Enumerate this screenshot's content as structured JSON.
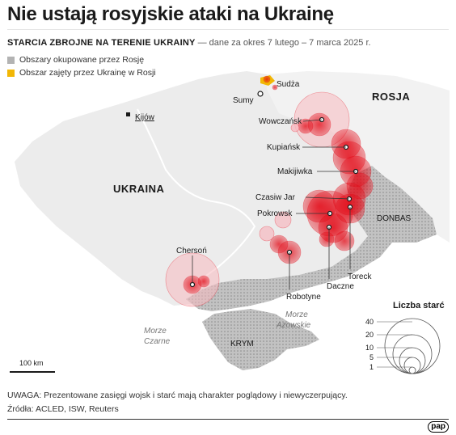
{
  "title": "Nie ustają rosyjskie ataki na Ukrainę",
  "subtitle": {
    "bold": "STARCIA ZBROJNE NA TERENIE UKRAINY",
    "rest": "— dane za okres 7 lutego – 7 marca 2025 r."
  },
  "legend": {
    "occupied": {
      "label": "Obszary okupowane przez Rosję",
      "color": "#b3b3b3"
    },
    "taken": {
      "label": "Obszar zajęty przez Ukrainę w Rosji",
      "color": "#f2b705"
    }
  },
  "colors": {
    "battle": "#e30613",
    "land": "#ececec",
    "sea": "#ffffff"
  },
  "map_labels": {
    "country_ukraine": "UKRAINA",
    "country_russia": "ROSJA",
    "region_donbas": "DONBAS",
    "region_krym": "KRYM",
    "sea_black_1": "Morze",
    "sea_black_2": "Czarne",
    "sea_azov_1": "Morze",
    "sea_azov_2": "Azowskie"
  },
  "cities": {
    "kyiv": "Kijów",
    "sudza": "Sudża",
    "sumy": "Sumy",
    "vovchansk": "Wowczańsk",
    "kupiansk": "Kupiańsk",
    "makiivka": "Makijiwka",
    "chasiv_yar": "Czasiw Jar",
    "pokrovsk": "Pokrowsk",
    "kherson": "Chersoń",
    "robotyne": "Robotyne",
    "dachne": "Daczne",
    "toretsk": "Toreck"
  },
  "scale_bar": {
    "label": "100 km"
  },
  "size_legend": {
    "title": "Liczba starć",
    "values": [
      40,
      20,
      10,
      5,
      1
    ]
  },
  "note": "UWAGA: Prezentowane zasięgi wojsk i starć mają charakter poglądowy i niewyczerpujący.",
  "sources": "Źródła: ACLED, ISW, Reuters",
  "logo": "pap"
}
